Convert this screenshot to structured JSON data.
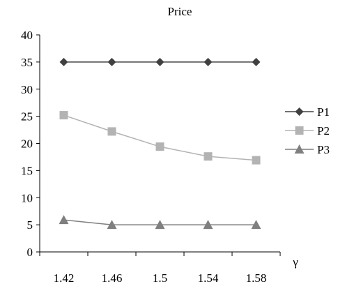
{
  "chart_data": {
    "type": "line",
    "title": "Price",
    "xlabel": "γ",
    "ylabel": "",
    "categories": [
      "1.42",
      "1.46",
      "1.5",
      "1.54",
      "1.58"
    ],
    "ylim": [
      0,
      40
    ],
    "yticks": [
      "0",
      "5",
      "10",
      "15",
      "20",
      "25",
      "30",
      "35",
      "40"
    ],
    "grid": false,
    "legend_position": "right",
    "series": [
      {
        "name": "P1",
        "values": [
          35,
          35,
          35,
          35,
          35
        ],
        "marker": "diamond",
        "color": "#404040"
      },
      {
        "name": "P2",
        "values": [
          25.2,
          22.2,
          19.4,
          17.6,
          16.9
        ],
        "marker": "square",
        "color": "#b3b3b3"
      },
      {
        "name": "P3",
        "values": [
          5.9,
          5.0,
          5.0,
          5.0,
          5.0
        ],
        "marker": "triangle",
        "color": "#7f7f7f"
      }
    ]
  }
}
